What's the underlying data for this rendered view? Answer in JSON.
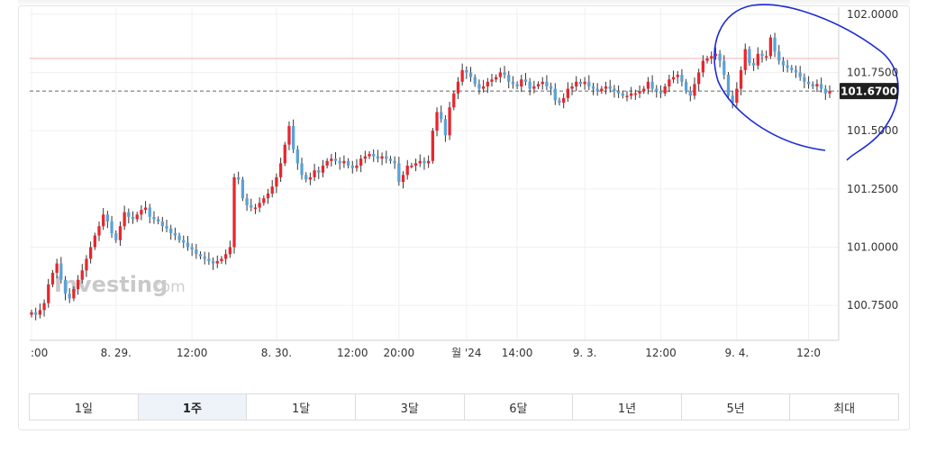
{
  "ranges": [
    {
      "label": "1일",
      "active": false
    },
    {
      "label": "1주",
      "active": true
    },
    {
      "label": "1달",
      "active": false
    },
    {
      "label": "3달",
      "active": false
    },
    {
      "label": "6달",
      "active": false
    },
    {
      "label": "1년",
      "active": false
    },
    {
      "label": "5년",
      "active": false
    },
    {
      "label": "최대",
      "active": false
    }
  ],
  "watermark": {
    "part1": "In",
    "part2": "vesting",
    ".com": "",
    "suffix": ".com"
  },
  "current_price_label": "101.6700",
  "colors": {
    "up": "#e8262d",
    "down": "#5aa2d8",
    "reference_line": "#f6b3b3",
    "annotation": "#1d2bd6",
    "price_tag_bg": "#1f1f1f"
  },
  "chart_data": {
    "type": "candlestick",
    "ylim": [
      100.6,
      102.03
    ],
    "yticks": [
      {
        "value": 102.0,
        "label": "102.0000"
      },
      {
        "value": 101.75,
        "label": "101.7500"
      },
      {
        "value": 101.5,
        "label": "101.5000"
      },
      {
        "value": 101.25,
        "label": "101.2500"
      },
      {
        "value": 101.0,
        "label": "101.0000"
      },
      {
        "value": 100.75,
        "label": "100.7500"
      }
    ],
    "xticks": [
      {
        "t": 0,
        "label": ":00"
      },
      {
        "t": 20,
        "label": "8. 29."
      },
      {
        "t": 38,
        "label": "12:00"
      },
      {
        "t": 58,
        "label": "8. 30."
      },
      {
        "t": 76,
        "label": "12:00"
      },
      {
        "t": 87,
        "label": "20:00"
      },
      {
        "t": 103,
        "label": "월 '24"
      },
      {
        "t": 115,
        "label": "14:00"
      },
      {
        "t": 131,
        "label": "9. 3."
      },
      {
        "t": 149,
        "label": "12:00"
      },
      {
        "t": 167,
        "label": "9. 4."
      },
      {
        "t": 184,
        "label": "12:0"
      }
    ],
    "reference_level": 101.81,
    "current_level": 101.67,
    "closes": [
      100.72,
      100.71,
      100.73,
      100.76,
      100.84,
      100.89,
      100.93,
      100.86,
      100.8,
      100.78,
      100.82,
      100.86,
      100.9,
      100.95,
      101.0,
      101.05,
      101.09,
      101.14,
      101.11,
      101.06,
      101.03,
      101.09,
      101.15,
      101.13,
      101.12,
      101.14,
      101.16,
      101.17,
      101.13,
      101.12,
      101.11,
      101.09,
      101.08,
      101.06,
      101.05,
      101.03,
      101.02,
      101.0,
      100.99,
      100.97,
      100.96,
      100.95,
      100.94,
      100.93,
      100.94,
      100.95,
      100.97,
      101.0,
      101.3,
      101.29,
      101.21,
      101.18,
      101.17,
      101.17,
      101.19,
      101.21,
      101.23,
      101.26,
      101.3,
      101.36,
      101.44,
      101.52,
      101.42,
      101.36,
      101.31,
      101.29,
      101.3,
      101.33,
      101.32,
      101.35,
      101.37,
      101.38,
      101.37,
      101.36,
      101.37,
      101.35,
      101.34,
      101.35,
      101.38,
      101.39,
      101.4,
      101.39,
      101.38,
      101.39,
      101.38,
      101.37,
      101.36,
      101.28,
      101.31,
      101.35,
      101.35,
      101.36,
      101.37,
      101.36,
      101.37,
      101.5,
      101.58,
      101.55,
      101.48,
      101.6,
      101.66,
      101.71,
      101.76,
      101.75,
      101.73,
      101.7,
      101.68,
      101.69,
      101.71,
      101.72,
      101.73,
      101.75,
      101.74,
      101.71,
      101.7,
      101.69,
      101.72,
      101.71,
      101.68,
      101.69,
      101.7,
      101.71,
      101.69,
      101.68,
      101.63,
      101.62,
      101.64,
      101.68,
      101.69,
      101.71,
      101.7,
      101.71,
      101.69,
      101.68,
      101.67,
      101.68,
      101.69,
      101.68,
      101.67,
      101.66,
      101.65,
      101.65,
      101.66,
      101.66,
      101.67,
      101.68,
      101.71,
      101.68,
      101.67,
      101.66,
      101.69,
      101.72,
      101.73,
      101.74,
      101.71,
      101.67,
      101.65,
      101.7,
      101.75,
      101.8,
      101.81,
      101.82,
      101.83,
      101.8,
      101.74,
      101.65,
      101.62,
      101.68,
      101.76,
      101.85,
      101.79,
      101.78,
      101.83,
      101.82,
      101.82,
      101.9,
      101.84,
      101.8,
      101.78,
      101.77,
      101.76,
      101.75,
      101.73,
      101.71,
      101.7,
      101.69,
      101.7,
      101.68,
      101.66,
      101.67
    ]
  }
}
